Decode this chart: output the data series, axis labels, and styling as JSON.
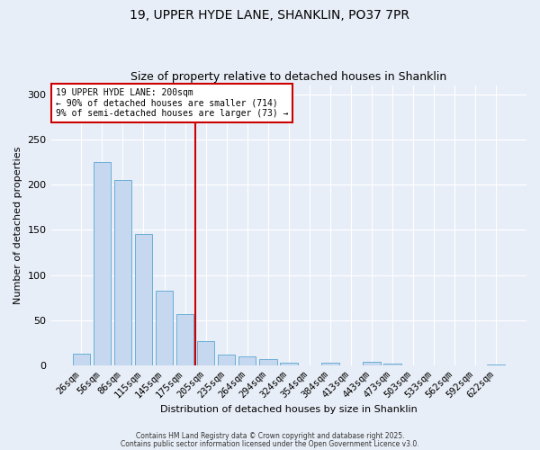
{
  "title": "19, UPPER HYDE LANE, SHANKLIN, PO37 7PR",
  "subtitle": "Size of property relative to detached houses in Shanklin",
  "xlabel": "Distribution of detached houses by size in Shanklin",
  "ylabel": "Number of detached properties",
  "bar_labels": [
    "26sqm",
    "56sqm",
    "86sqm",
    "115sqm",
    "145sqm",
    "175sqm",
    "205sqm",
    "235sqm",
    "264sqm",
    "294sqm",
    "324sqm",
    "354sqm",
    "384sqm",
    "413sqm",
    "443sqm",
    "473sqm",
    "503sqm",
    "533sqm",
    "562sqm",
    "592sqm",
    "622sqm"
  ],
  "bar_heights": [
    13,
    225,
    205,
    145,
    83,
    57,
    27,
    12,
    10,
    7,
    3,
    0,
    3,
    0,
    4,
    2,
    0,
    0,
    0,
    0,
    1
  ],
  "bar_color": "#c5d8f0",
  "bar_edge_color": "#6aaed6",
  "vline_color": "#cc0000",
  "annotation_line1": "19 UPPER HYDE LANE: 200sqm",
  "annotation_line2": "← 90% of detached houses are smaller (714)",
  "annotation_line3": "9% of semi-detached houses are larger (73) →",
  "annotation_box_color": "#cc0000",
  "ylim": [
    0,
    310
  ],
  "yticks": [
    0,
    50,
    100,
    150,
    200,
    250,
    300
  ],
  "footer1": "Contains HM Land Registry data © Crown copyright and database right 2025.",
  "footer2": "Contains public sector information licensed under the Open Government Licence v3.0.",
  "background_color": "#e8eef7",
  "plot_background": "#e8eef7",
  "title_fontsize": 10,
  "subtitle_fontsize": 9,
  "axis_label_fontsize": 8,
  "tick_fontsize": 7.5,
  "annotation_fontsize": 7,
  "footer_fontsize": 5.5
}
